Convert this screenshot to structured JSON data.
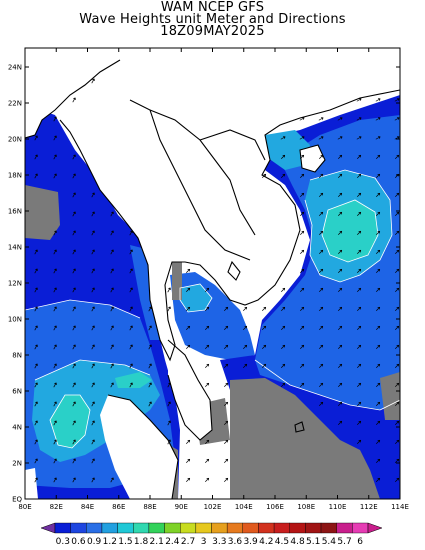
{
  "title": {
    "line1": "WAM NCEP GFS",
    "line2": "Wave Heights unit Meter and Directions",
    "line3": "18Z09MAY2025"
  },
  "axes": {
    "lat_labels": [
      "24N",
      "22N",
      "20N",
      "18N",
      "16N",
      "14N",
      "12N",
      "10N",
      "8N",
      "6N",
      "4N",
      "2N",
      "EQ"
    ],
    "lon_labels": [
      "80E",
      "82E",
      "84E",
      "86E",
      "88E",
      "90E",
      "102E",
      "104E",
      "106E",
      "108E",
      "110E",
      "112E",
      "114E"
    ]
  },
  "colorbar": {
    "labels": [
      "0.3",
      "0.6",
      "0.9",
      "1.2",
      "1.5",
      "1.8",
      "2.1",
      "2.4",
      "2.7",
      "3",
      "3.3",
      "3.6",
      "3.9",
      "4.2",
      "4.5",
      "4.8",
      "5.1",
      "5.4",
      "5.7",
      "6"
    ],
    "colors": [
      "#0a1ed6",
      "#1e46e0",
      "#2a6fe6",
      "#22a0e0",
      "#20c8d6",
      "#30d8b0",
      "#32d25a",
      "#7ed228",
      "#c8dc20",
      "#e6c81e",
      "#e6a01e",
      "#e67a1e",
      "#e05a1e",
      "#d2321e",
      "#c81e1e",
      "#b41414",
      "#a01414",
      "#8c1414",
      "#c81e8c",
      "#e63cb4"
    ]
  },
  "map": {
    "palette": {
      "ocean_low": "#0a1ed6",
      "ocean_mid": "#1e64e6",
      "ocean_high": "#22a8e0",
      "ocean_peak": "#2ad0c8",
      "land": "#ffffff",
      "masked": "#7a7a7a",
      "coast": "#000000"
    }
  }
}
